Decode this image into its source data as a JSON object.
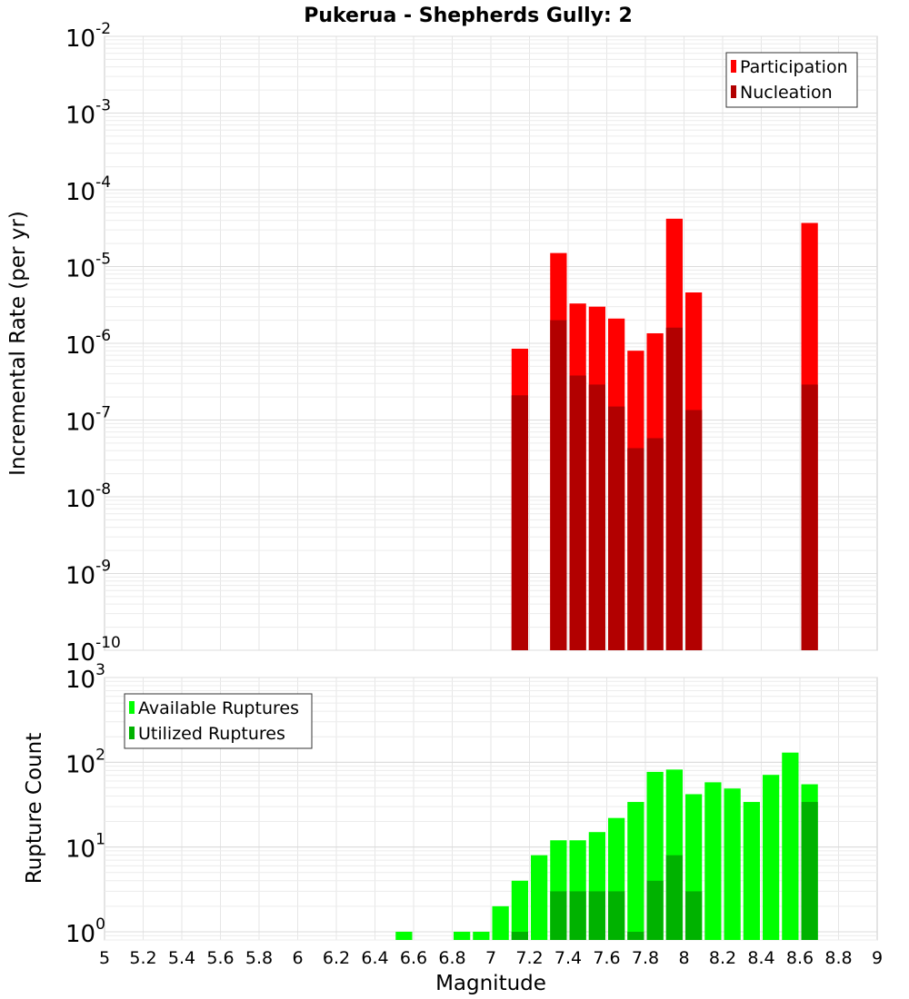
{
  "chart_data": [
    {
      "type": "bar",
      "title": "Pukerua - Shepherds Gully: 2",
      "xlabel": "",
      "ylabel": "Incremental Rate (per yr)",
      "yscale": "log",
      "ylim": [
        1e-10,
        0.01
      ],
      "xlim": [
        5,
        9
      ],
      "bar_width": 0.1,
      "grid": true,
      "legend_position": "top-right",
      "y_ticks": [
        {
          "base": "10",
          "exp": "-10"
        },
        {
          "base": "10",
          "exp": "-9"
        },
        {
          "base": "10",
          "exp": "-8"
        },
        {
          "base": "10",
          "exp": "-7"
        },
        {
          "base": "10",
          "exp": "-6"
        },
        {
          "base": "10",
          "exp": "-5"
        },
        {
          "base": "10",
          "exp": "-4"
        },
        {
          "base": "10",
          "exp": "-3"
        },
        {
          "base": "10",
          "exp": "-2"
        }
      ],
      "series": [
        {
          "name": "Participation",
          "color": "#ff0000",
          "points": [
            {
              "x": 7.15,
              "y": 8.5e-07
            },
            {
              "x": 7.35,
              "y": 1.5e-05
            },
            {
              "x": 7.45,
              "y": 3.3e-06
            },
            {
              "x": 7.55,
              "y": 3e-06
            },
            {
              "x": 7.65,
              "y": 2.1e-06
            },
            {
              "x": 7.75,
              "y": 8e-07
            },
            {
              "x": 7.85,
              "y": 1.35e-06
            },
            {
              "x": 7.95,
              "y": 4.2e-05
            },
            {
              "x": 8.05,
              "y": 4.6e-06
            },
            {
              "x": 8.65,
              "y": 3.7e-05
            }
          ]
        },
        {
          "name": "Nucleation",
          "color": "#b20000",
          "points": [
            {
              "x": 7.15,
              "y": 2.1e-07
            },
            {
              "x": 7.35,
              "y": 2e-06
            },
            {
              "x": 7.45,
              "y": 3.8e-07
            },
            {
              "x": 7.55,
              "y": 2.9e-07
            },
            {
              "x": 7.65,
              "y": 1.5e-07
            },
            {
              "x": 7.75,
              "y": 4.3e-08
            },
            {
              "x": 7.85,
              "y": 5.8e-08
            },
            {
              "x": 7.95,
              "y": 1.6e-06
            },
            {
              "x": 8.05,
              "y": 1.35e-07
            },
            {
              "x": 8.65,
              "y": 2.9e-07
            }
          ]
        }
      ]
    },
    {
      "type": "bar",
      "title": "",
      "xlabel": "Magnitude",
      "ylabel": "Rupture Count",
      "yscale": "log",
      "ylim": [
        0.8,
        1000
      ],
      "xlim": [
        5,
        9
      ],
      "bar_width": 0.1,
      "grid": true,
      "legend_position": "top-left",
      "x_ticks": [
        "5",
        "5.2",
        "5.4",
        "5.6",
        "5.8",
        "6",
        "6.2",
        "6.4",
        "6.6",
        "6.8",
        "7",
        "7.2",
        "7.4",
        "7.6",
        "7.8",
        "8",
        "8.2",
        "8.4",
        "8.6",
        "8.8",
        "9"
      ],
      "y_ticks": [
        {
          "base": "10",
          "exp": "0"
        },
        {
          "base": "10",
          "exp": "1"
        },
        {
          "base": "10",
          "exp": "2"
        },
        {
          "base": "10",
          "exp": "3"
        }
      ],
      "series": [
        {
          "name": "Available Ruptures",
          "color": "#00ff00",
          "points": [
            {
              "x": 6.55,
              "y": 1
            },
            {
              "x": 6.85,
              "y": 1
            },
            {
              "x": 6.95,
              "y": 1
            },
            {
              "x": 7.05,
              "y": 2
            },
            {
              "x": 7.15,
              "y": 4
            },
            {
              "x": 7.25,
              "y": 8
            },
            {
              "x": 7.35,
              "y": 12
            },
            {
              "x": 7.45,
              "y": 12
            },
            {
              "x": 7.55,
              "y": 15
            },
            {
              "x": 7.65,
              "y": 22
            },
            {
              "x": 7.75,
              "y": 34
            },
            {
              "x": 7.85,
              "y": 77
            },
            {
              "x": 7.95,
              "y": 82
            },
            {
              "x": 8.05,
              "y": 42
            },
            {
              "x": 8.15,
              "y": 58
            },
            {
              "x": 8.25,
              "y": 49
            },
            {
              "x": 8.35,
              "y": 34
            },
            {
              "x": 8.45,
              "y": 71
            },
            {
              "x": 8.55,
              "y": 130
            },
            {
              "x": 8.65,
              "y": 55
            }
          ]
        },
        {
          "name": "Utilized Ruptures",
          "color": "#00b200",
          "points": [
            {
              "x": 7.15,
              "y": 1
            },
            {
              "x": 7.35,
              "y": 3
            },
            {
              "x": 7.45,
              "y": 3
            },
            {
              "x": 7.55,
              "y": 3
            },
            {
              "x": 7.65,
              "y": 3
            },
            {
              "x": 7.75,
              "y": 1
            },
            {
              "x": 7.85,
              "y": 4
            },
            {
              "x": 7.95,
              "y": 8
            },
            {
              "x": 8.05,
              "y": 3
            },
            {
              "x": 8.65,
              "y": 34
            }
          ]
        }
      ]
    }
  ]
}
